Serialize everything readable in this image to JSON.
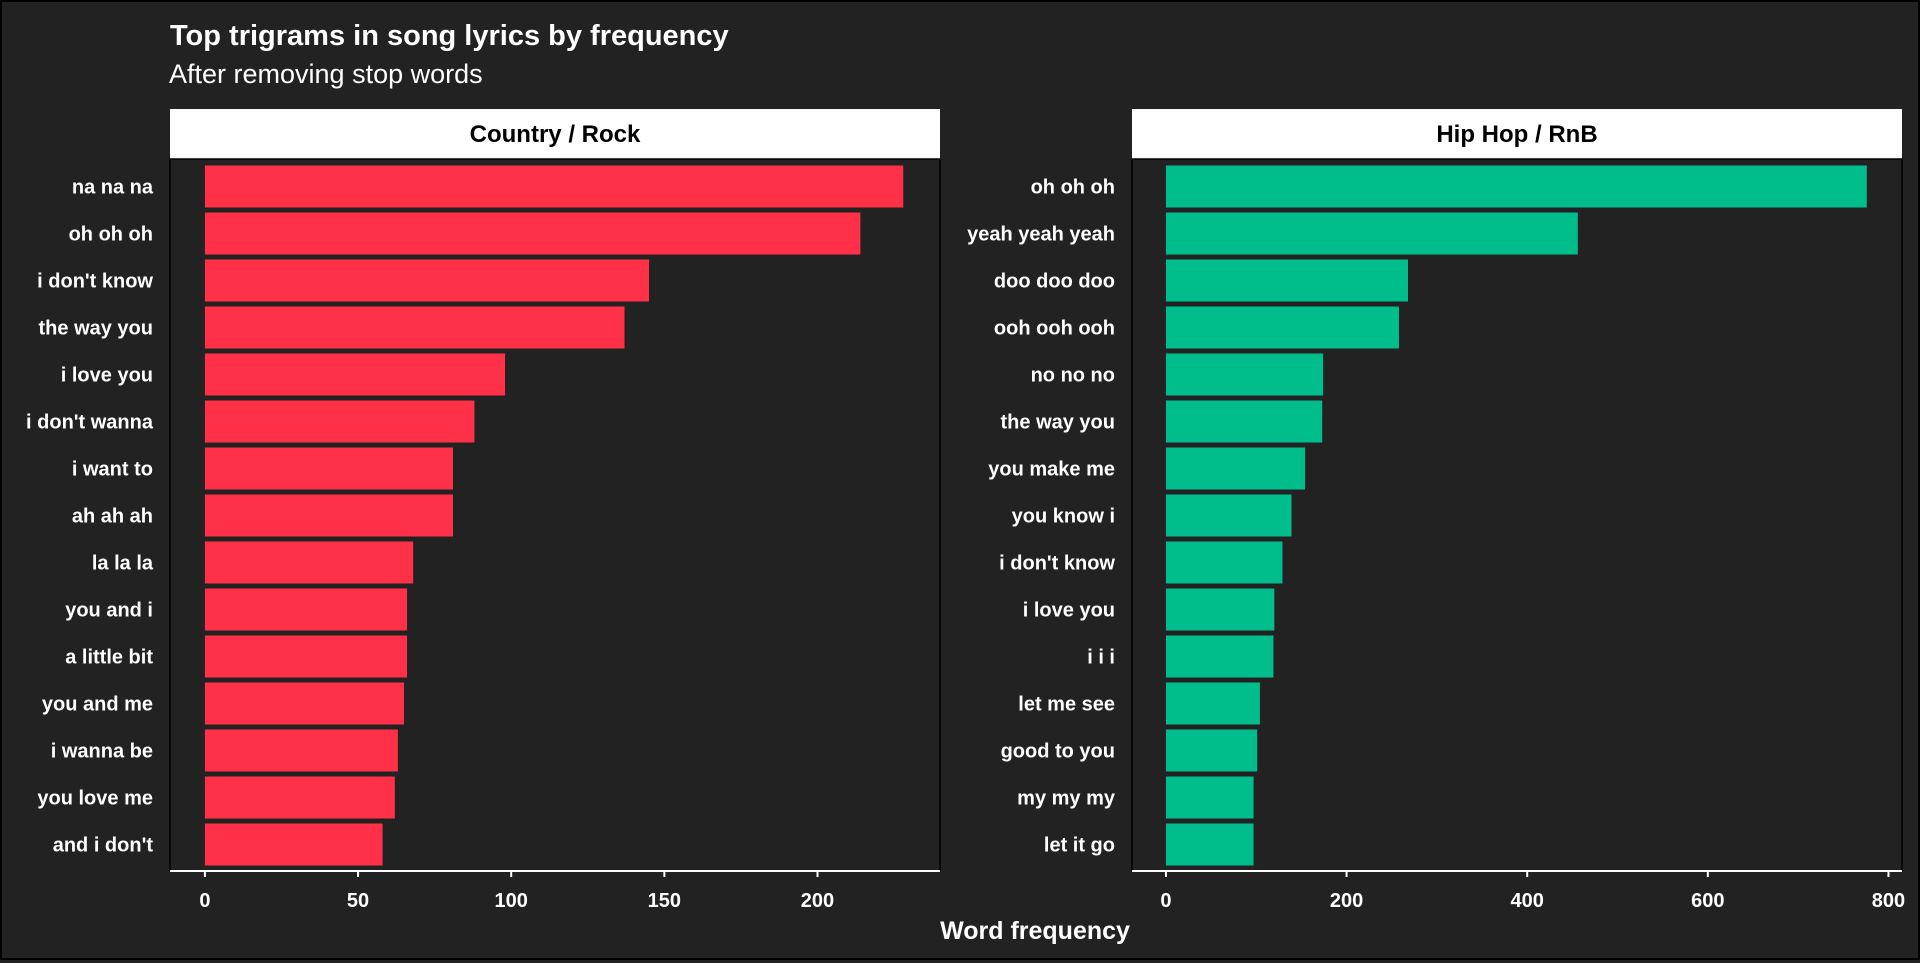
{
  "chart_data": {
    "type": "bar",
    "orientation": "horizontal",
    "title": "Top trigrams in song lyrics by frequency",
    "subtitle": "After removing stop words",
    "xlabel": "Word frequency",
    "grid": false,
    "legend": "none",
    "background_color": "#222222",
    "panels": [
      {
        "name": "Country / Rock",
        "color": "#FF3047",
        "xlim": [
          -11.4,
          240
        ],
        "ticks": [
          0,
          50,
          100,
          150,
          200
        ],
        "categories": [
          "na na na",
          "oh oh oh",
          "i don't know",
          "the way you",
          "i love you",
          "i don't wanna",
          "i want to",
          "ah ah ah",
          "la la la",
          "you and i",
          "a little bit",
          "you and me",
          "i wanna be",
          "you love me",
          "and i don't"
        ],
        "values": [
          228,
          214,
          145,
          137,
          98,
          88,
          81,
          81,
          68,
          66,
          66,
          65,
          63,
          62,
          58
        ]
      },
      {
        "name": "Hip Hop / RnB",
        "color": "#00BE8C",
        "xlim": [
          -37.6,
          815
        ],
        "ticks": [
          0,
          200,
          400,
          600,
          800
        ],
        "categories": [
          "oh oh oh",
          "yeah yeah yeah",
          "doo doo doo",
          "ooh ooh ooh",
          "no no no",
          "the way you",
          "you make me",
          "you know i",
          "i don't know",
          "i love you",
          "i i i",
          "let me see",
          "good to you",
          "my my my",
          "let it go"
        ],
        "values": [
          776,
          456,
          268,
          258,
          174,
          173,
          154,
          139,
          129,
          120,
          119,
          104,
          101,
          97,
          97
        ]
      }
    ]
  }
}
